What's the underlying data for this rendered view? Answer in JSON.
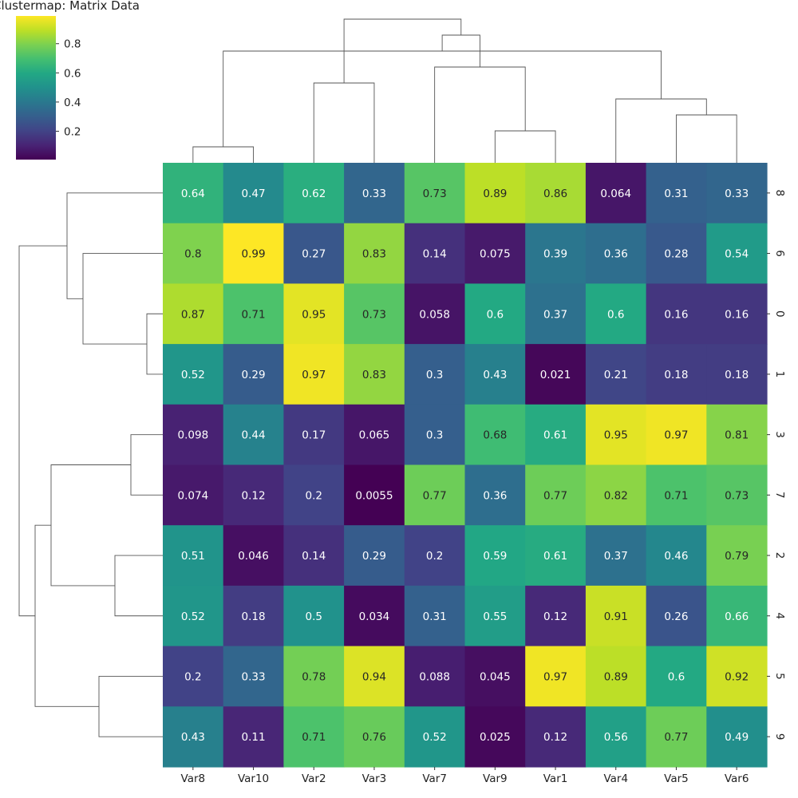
{
  "chart_data": {
    "type": "heatmap",
    "title": "Clustermap: Matrix Data",
    "colormap": "viridis",
    "columns": [
      "Var8",
      "Var10",
      "Var2",
      "Var3",
      "Var7",
      "Var9",
      "Var1",
      "Var4",
      "Var5",
      "Var6"
    ],
    "rows": [
      "8",
      "6",
      "0",
      "1",
      "3",
      "7",
      "2",
      "4",
      "5",
      "9"
    ],
    "values": [
      [
        0.64,
        0.47,
        0.62,
        0.33,
        0.73,
        0.89,
        0.86,
        0.064,
        0.31,
        0.33
      ],
      [
        0.8,
        0.99,
        0.27,
        0.83,
        0.14,
        0.075,
        0.39,
        0.36,
        0.28,
        0.54
      ],
      [
        0.87,
        0.71,
        0.95,
        0.73,
        0.058,
        0.6,
        0.37,
        0.6,
        0.16,
        0.16
      ],
      [
        0.52,
        0.29,
        0.97,
        0.83,
        0.3,
        0.43,
        0.021,
        0.21,
        0.18,
        0.18
      ],
      [
        0.098,
        0.44,
        0.17,
        0.065,
        0.3,
        0.68,
        0.61,
        0.95,
        0.97,
        0.81
      ],
      [
        0.074,
        0.12,
        0.2,
        0.0055,
        0.77,
        0.36,
        0.77,
        0.82,
        0.71,
        0.73
      ],
      [
        0.51,
        0.046,
        0.14,
        0.29,
        0.2,
        0.59,
        0.61,
        0.37,
        0.46,
        0.79
      ],
      [
        0.52,
        0.18,
        0.5,
        0.034,
        0.31,
        0.55,
        0.12,
        0.91,
        0.26,
        0.66
      ],
      [
        0.2,
        0.33,
        0.78,
        0.94,
        0.088,
        0.045,
        0.97,
        0.89,
        0.6,
        0.92
      ],
      [
        0.43,
        0.11,
        0.71,
        0.76,
        0.52,
        0.025,
        0.12,
        0.56,
        0.77,
        0.49
      ]
    ],
    "colorbar": {
      "ticks": [
        "0.2",
        "0.4",
        "0.6",
        "0.8"
      ],
      "range": [
        0.0055,
        0.99
      ]
    },
    "col_dendrogram": [
      [
        0,
        1
      ],
      [
        5,
        6
      ],
      [
        8,
        9
      ],
      [
        7,
        12
      ],
      [
        2,
        3
      ],
      [
        4,
        11
      ],
      [
        10,
        13
      ],
      [
        15,
        16
      ],
      [
        14,
        17
      ]
    ],
    "row_dendrogram": [
      [
        2,
        3
      ],
      [
        4,
        5
      ],
      [
        6,
        7
      ],
      [
        8,
        9
      ],
      [
        1,
        10
      ],
      [
        0,
        14
      ],
      [
        11,
        12
      ],
      [
        13,
        16
      ],
      [
        15,
        17
      ]
    ]
  }
}
